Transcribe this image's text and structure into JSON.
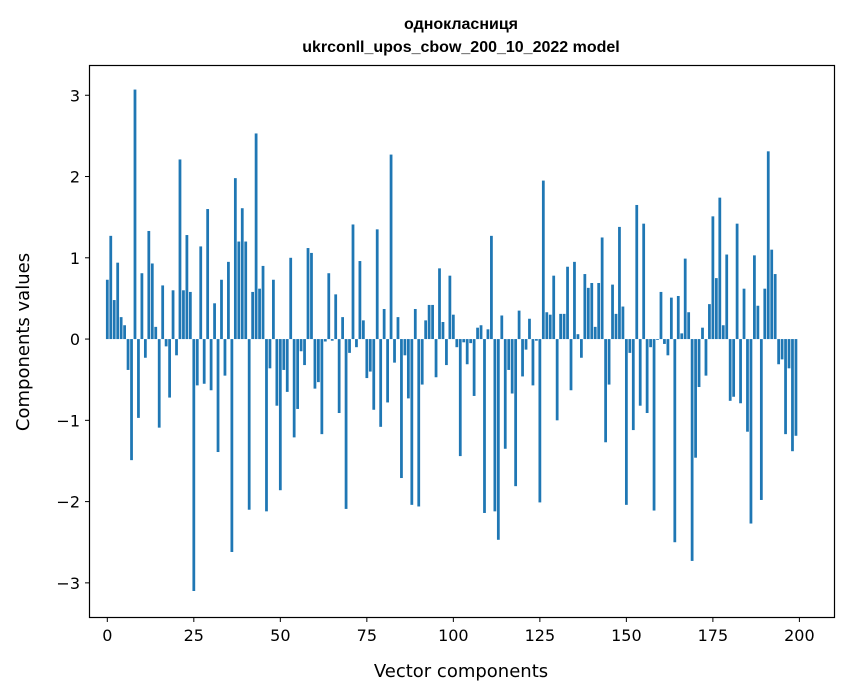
{
  "chart_data": {
    "type": "bar",
    "title_line1": "однокласниця",
    "title_line2": "ukrconll_upos_cbow_200_10_2022 model",
    "xlabel": "Vector components",
    "ylabel": "Components values",
    "xlim": [
      -5,
      210
    ],
    "ylim": [
      -3.42,
      3.36
    ],
    "xticks": [
      0,
      25,
      50,
      75,
      100,
      125,
      150,
      175,
      200
    ],
    "yticks": [
      -3,
      -2,
      -1,
      0,
      1,
      2,
      3
    ],
    "xtick_labels": [
      "0",
      "25",
      "50",
      "75",
      "100",
      "125",
      "150",
      "175",
      "200"
    ],
    "ytick_labels": [
      "−3",
      "−2",
      "−1",
      "0",
      "1",
      "2",
      "3"
    ],
    "bar_color": "#1f77b4",
    "values": [
      0.73,
      1.27,
      0.48,
      0.94,
      0.27,
      0.17,
      -0.38,
      -1.49,
      3.07,
      -0.97,
      0.81,
      -0.23,
      1.33,
      0.93,
      0.15,
      -1.09,
      0.66,
      -0.09,
      -0.72,
      0.6,
      -0.2,
      2.21,
      0.6,
      1.28,
      0.58,
      -3.1,
      -0.57,
      1.14,
      -0.55,
      1.6,
      -0.63,
      0.44,
      -1.39,
      0.73,
      -0.45,
      0.95,
      -2.62,
      1.98,
      1.2,
      1.61,
      1.2,
      -2.1,
      0.58,
      2.53,
      0.62,
      0.9,
      -2.12,
      -0.36,
      0.73,
      -0.82,
      -1.86,
      -0.38,
      -0.65,
      1.0,
      -1.21,
      -0.86,
      -0.15,
      -0.32,
      1.12,
      1.06,
      -0.61,
      -0.53,
      -1.17,
      -0.03,
      0.81,
      -0.02,
      0.55,
      -0.91,
      0.27,
      -2.09,
      -0.17,
      1.41,
      -0.1,
      0.96,
      0.23,
      -0.48,
      -0.4,
      -0.87,
      1.35,
      -1.08,
      0.37,
      -0.78,
      2.27,
      -0.29,
      0.27,
      -1.71,
      -0.2,
      -0.73,
      -2.04,
      0.37,
      -2.06,
      -0.56,
      0.23,
      0.42,
      0.42,
      -0.47,
      0.87,
      0.21,
      -0.32,
      0.78,
      0.3,
      -0.1,
      -1.44,
      -0.04,
      -0.31,
      -0.05,
      -0.7,
      0.14,
      0.17,
      -2.14,
      0.12,
      1.27,
      -2.12,
      -2.47,
      0.29,
      -1.35,
      -0.38,
      -0.67,
      -1.81,
      0.35,
      -0.46,
      -0.13,
      0.25,
      -0.57,
      -0.02,
      -2.01,
      1.95,
      0.33,
      0.3,
      0.78,
      -1.0,
      0.31,
      0.31,
      0.89,
      -0.63,
      0.95,
      0.06,
      -0.23,
      0.8,
      0.63,
      0.69,
      0.15,
      0.69,
      1.25,
      -1.27,
      -0.56,
      0.67,
      0.31,
      1.38,
      0.4,
      -2.04,
      -0.17,
      -1.12,
      1.65,
      -0.82,
      1.42,
      -0.91,
      -0.1,
      -2.11,
      -0.01,
      0.58,
      -0.06,
      -0.2,
      0.51,
      -2.5,
      0.53,
      0.07,
      0.99,
      0.33,
      -2.73,
      -1.46,
      -0.59,
      0.14,
      -0.45,
      0.43,
      1.51,
      0.75,
      1.74,
      0.17,
      1.04,
      -0.76,
      -0.71,
      1.42,
      -0.79,
      0.62,
      -1.14,
      -2.27,
      1.03,
      0.41,
      -1.98,
      0.62,
      2.31,
      1.1,
      0.8,
      -0.31,
      -0.25,
      -1.17,
      -0.36,
      -1.38,
      -1.19
    ]
  }
}
